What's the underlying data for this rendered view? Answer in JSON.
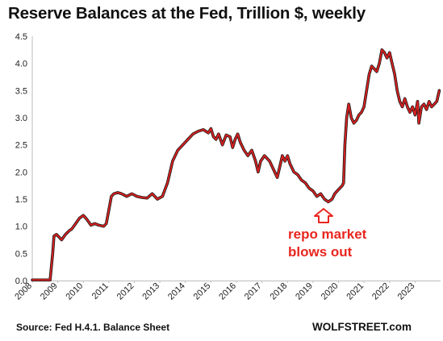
{
  "chart_data": {
    "type": "line",
    "title": "Reserve Balances at the Fed, Trillion $, weekly",
    "source": "Source: Fed H.4.1. Balance Sheet",
    "brand": "WOLFSTREET.com",
    "annotation_line1": "repo market",
    "annotation_line2": "blows out",
    "xlabel": "",
    "ylabel": "",
    "xlim": [
      2008.0,
      2024.0
    ],
    "ylim": [
      0,
      4.5
    ],
    "y_ticks": [
      "0.0",
      "0.5",
      "1.0",
      "1.5",
      "2.0",
      "2.5",
      "3.0",
      "3.5",
      "4.0",
      "4.5"
    ],
    "x_ticks": [
      "2008",
      "2009",
      "2010",
      "2011",
      "2012",
      "2013",
      "2014",
      "2015",
      "2016",
      "2017",
      "2018",
      "2019",
      "2020",
      "2021",
      "2022",
      "2023"
    ],
    "grid": false,
    "line_color": "#d62020",
    "shadow_color": "#1a1a1a",
    "annotation_color": "#e8261e",
    "series": [
      {
        "x": [
          2008.0,
          2008.3,
          2008.55,
          2008.7,
          2008.8,
          2008.85,
          2008.95,
          2009.05,
          2009.15,
          2009.3,
          2009.45,
          2009.55,
          2009.7,
          2009.85,
          2010.0,
          2010.15,
          2010.3,
          2010.45,
          2010.6,
          2010.8,
          2010.9,
          2011.0,
          2011.1,
          2011.2,
          2011.35,
          2011.5,
          2011.7,
          2011.9,
          2012.1,
          2012.3,
          2012.5,
          2012.7,
          2012.9,
          2013.1,
          2013.3,
          2013.5,
          2013.7,
          2013.9,
          2014.1,
          2014.3,
          2014.5,
          2014.7,
          2014.9,
          2015.0,
          2015.1,
          2015.2,
          2015.3,
          2015.45,
          2015.6,
          2015.75,
          2015.85,
          2015.95,
          2016.05,
          2016.15,
          2016.3,
          2016.45,
          2016.6,
          2016.75,
          2016.85,
          2016.95,
          2017.1,
          2017.3,
          2017.5,
          2017.6,
          2017.7,
          2017.8,
          2017.9,
          2018.0,
          2018.1,
          2018.25,
          2018.4,
          2018.55,
          2018.7,
          2018.85,
          2019.0,
          2019.15,
          2019.3,
          2019.45,
          2019.6,
          2019.75,
          2019.85,
          2019.95,
          2020.05,
          2020.15,
          2020.2,
          2020.25,
          2020.32,
          2020.4,
          2020.5,
          2020.6,
          2020.7,
          2020.8,
          2020.9,
          2021.0,
          2021.1,
          2021.2,
          2021.3,
          2021.4,
          2021.5,
          2021.6,
          2021.7,
          2021.8,
          2021.9,
          2022.0,
          2022.1,
          2022.2,
          2022.3,
          2022.4,
          2022.5,
          2022.6,
          2022.7,
          2022.8,
          2022.9,
          2023.0,
          2023.1,
          2023.15,
          2023.25,
          2023.35,
          2023.45,
          2023.55,
          2023.65,
          2023.75,
          2023.85,
          2023.95
        ],
        "y": [
          0.01,
          0.01,
          0.01,
          0.01,
          0.5,
          0.82,
          0.85,
          0.8,
          0.75,
          0.85,
          0.92,
          0.95,
          1.05,
          1.15,
          1.2,
          1.12,
          1.02,
          1.05,
          1.02,
          1.0,
          1.05,
          1.3,
          1.55,
          1.6,
          1.62,
          1.6,
          1.55,
          1.6,
          1.55,
          1.53,
          1.52,
          1.6,
          1.5,
          1.55,
          1.8,
          2.2,
          2.4,
          2.5,
          2.6,
          2.7,
          2.75,
          2.78,
          2.72,
          2.8,
          2.65,
          2.6,
          2.7,
          2.5,
          2.68,
          2.65,
          2.45,
          2.6,
          2.7,
          2.55,
          2.4,
          2.3,
          2.4,
          2.2,
          2.0,
          2.2,
          2.3,
          2.2,
          2.0,
          1.9,
          2.1,
          2.3,
          2.2,
          2.3,
          2.15,
          2.0,
          1.95,
          1.85,
          1.8,
          1.7,
          1.65,
          1.55,
          1.6,
          1.5,
          1.45,
          1.5,
          1.6,
          1.65,
          1.7,
          1.75,
          1.8,
          2.5,
          3.0,
          3.25,
          3.0,
          2.9,
          2.95,
          3.05,
          3.1,
          3.2,
          3.5,
          3.8,
          3.95,
          3.9,
          3.85,
          4.0,
          4.25,
          4.2,
          4.1,
          4.2,
          4.0,
          3.8,
          3.5,
          3.3,
          3.2,
          3.35,
          3.2,
          3.1,
          3.2,
          3.05,
          3.3,
          2.9,
          3.2,
          3.25,
          3.15,
          3.3,
          3.2,
          3.25,
          3.3,
          3.5
        ]
      }
    ]
  }
}
